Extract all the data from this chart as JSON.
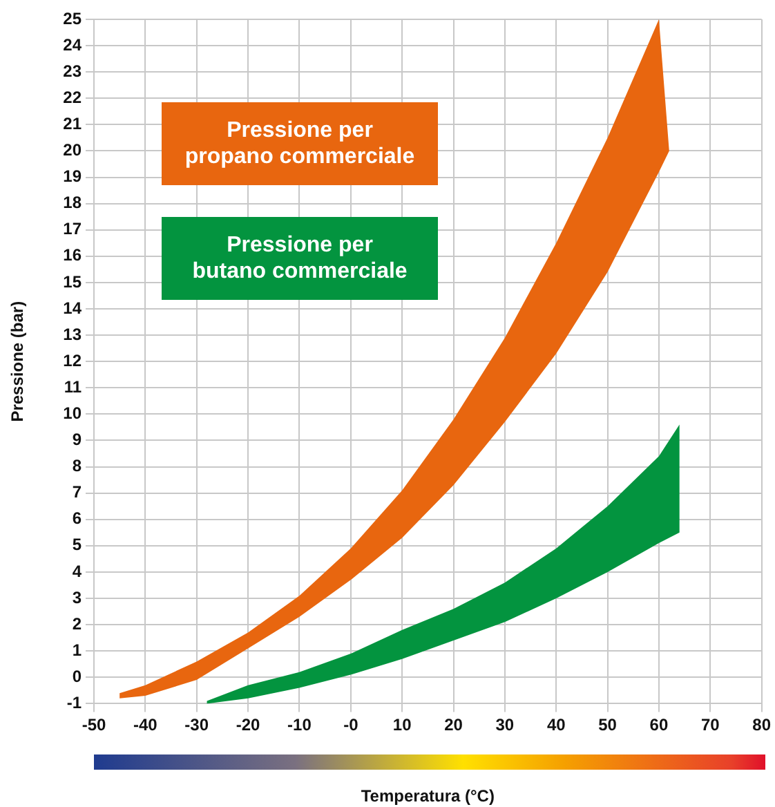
{
  "chart_data": {
    "type": "area",
    "xlabel": "Temperatura (°C)",
    "ylabel": "Pressione (bar)",
    "xlim": [
      -50,
      80
    ],
    "xticks": [
      -50,
      -40,
      -30,
      -20,
      -10,
      {
        "value": 0,
        "label": "-0"
      },
      10,
      20,
      30,
      40,
      50,
      60,
      70,
      80
    ],
    "ylim": [
      -1,
      25
    ],
    "yticks": [
      -1,
      0,
      1,
      2,
      3,
      4,
      5,
      6,
      7,
      8,
      9,
      10,
      11,
      12,
      13,
      14,
      15,
      16,
      17,
      18,
      19,
      20,
      21,
      22,
      23,
      24,
      25
    ],
    "grid": true,
    "legend": "top left",
    "marker": "none",
    "series": [
      {
        "name": "Pressione per propano commerciale",
        "color": "#e8660f",
        "x": [
          -45,
          -40,
          -30,
          -20,
          -10,
          0,
          10,
          20,
          30,
          40,
          50,
          60,
          62,
          60,
          50,
          40,
          30,
          20,
          10,
          0,
          -10,
          -20,
          -30,
          -40,
          -45
        ],
        "values": [
          -0.6,
          -0.3,
          0.6,
          1.7,
          3.1,
          4.9,
          7.1,
          9.8,
          12.9,
          16.5,
          20.5,
          25,
          20,
          19.2,
          15.4,
          12.3,
          9.7,
          7.3,
          5.3,
          3.7,
          2.3,
          1.1,
          -0.1,
          -0.7,
          -0.8
        ]
      },
      {
        "name": "Pressione per butano commerciale",
        "color": "#03943f",
        "x": [
          -28,
          -20,
          -10,
          0,
          10,
          20,
          30,
          40,
          50,
          60,
          64,
          64,
          60,
          50,
          40,
          30,
          20,
          10,
          0,
          -10,
          -20,
          -28
        ],
        "values": [
          -0.9,
          -0.3,
          0.2,
          0.9,
          1.8,
          2.6,
          3.6,
          4.9,
          6.5,
          8.4,
          9.6,
          5.5,
          5.1,
          4,
          3,
          2.1,
          1.4,
          0.7,
          0.1,
          -0.4,
          -0.8,
          -1
        ]
      }
    ]
  }
}
